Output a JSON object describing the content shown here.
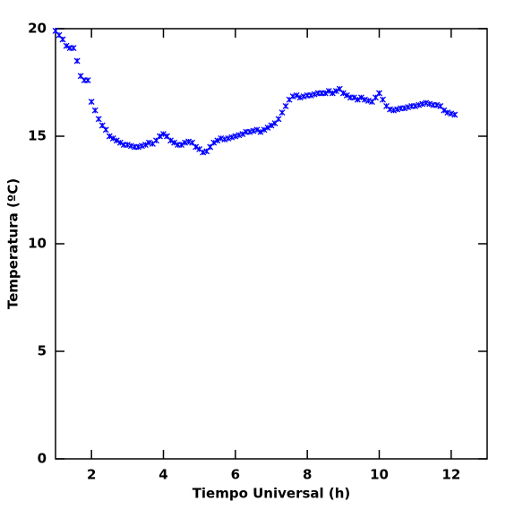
{
  "chart_data": {
    "type": "scatter",
    "xlabel": "Tiempo Universal (h)",
    "ylabel": "Temperatura (ºC)",
    "xlim": [
      1,
      13
    ],
    "ylim": [
      0,
      20
    ],
    "xticks": [
      2,
      4,
      6,
      8,
      10,
      12
    ],
    "yticks": [
      0,
      5,
      10,
      15,
      20
    ],
    "series": [
      {
        "color": "#0000ff",
        "x": [
          1.0,
          1.1,
          1.2,
          1.3,
          1.4,
          1.5,
          1.6,
          1.7,
          1.8,
          1.9,
          2.0,
          2.1,
          2.2,
          2.3,
          2.4,
          2.5,
          2.6,
          2.7,
          2.8,
          2.9,
          3.0,
          3.1,
          3.2,
          3.3,
          3.4,
          3.5,
          3.6,
          3.7,
          3.8,
          3.9,
          4.0,
          4.1,
          4.2,
          4.3,
          4.4,
          4.5,
          4.6,
          4.7,
          4.8,
          4.9,
          5.0,
          5.1,
          5.2,
          5.3,
          5.4,
          5.5,
          5.6,
          5.7,
          5.8,
          5.9,
          6.0,
          6.1,
          6.2,
          6.3,
          6.4,
          6.5,
          6.6,
          6.7,
          6.8,
          6.9,
          7.0,
          7.1,
          7.2,
          7.3,
          7.4,
          7.5,
          7.6,
          7.7,
          7.8,
          7.9,
          8.0,
          8.1,
          8.2,
          8.3,
          8.4,
          8.5,
          8.6,
          8.7,
          8.8,
          8.9,
          9.0,
          9.1,
          9.2,
          9.3,
          9.4,
          9.5,
          9.6,
          9.7,
          9.8,
          9.9,
          10.0,
          10.1,
          10.2,
          10.3,
          10.4,
          10.5,
          10.6,
          10.7,
          10.8,
          10.9,
          11.0,
          11.1,
          11.2,
          11.3,
          11.4,
          11.5,
          11.6,
          11.7,
          11.8,
          11.9,
          12.0,
          12.1
        ],
        "values": [
          19.9,
          19.7,
          19.5,
          19.2,
          19.1,
          19.1,
          18.5,
          17.8,
          17.6,
          17.6,
          16.6,
          16.2,
          15.8,
          15.5,
          15.3,
          15.0,
          14.9,
          14.8,
          14.7,
          14.6,
          14.6,
          14.55,
          14.5,
          14.5,
          14.55,
          14.6,
          14.7,
          14.65,
          14.8,
          15.0,
          15.1,
          15.0,
          14.8,
          14.7,
          14.6,
          14.6,
          14.7,
          14.75,
          14.7,
          14.5,
          14.4,
          14.25,
          14.3,
          14.5,
          14.7,
          14.8,
          14.9,
          14.85,
          14.9,
          14.95,
          15.0,
          15.05,
          15.1,
          15.2,
          15.2,
          15.25,
          15.3,
          15.2,
          15.3,
          15.4,
          15.5,
          15.6,
          15.8,
          16.1,
          16.4,
          16.7,
          16.85,
          16.9,
          16.8,
          16.85,
          16.9,
          16.9,
          16.95,
          17.0,
          17.0,
          17.0,
          17.1,
          17.0,
          17.1,
          17.2,
          17.0,
          16.9,
          16.8,
          16.8,
          16.7,
          16.8,
          16.7,
          16.65,
          16.6,
          16.8,
          17.0,
          16.7,
          16.4,
          16.25,
          16.2,
          16.25,
          16.3,
          16.3,
          16.35,
          16.4,
          16.4,
          16.45,
          16.5,
          16.55,
          16.5,
          16.45,
          16.45,
          16.4,
          16.2,
          16.1,
          16.05,
          16.0
        ]
      }
    ]
  }
}
